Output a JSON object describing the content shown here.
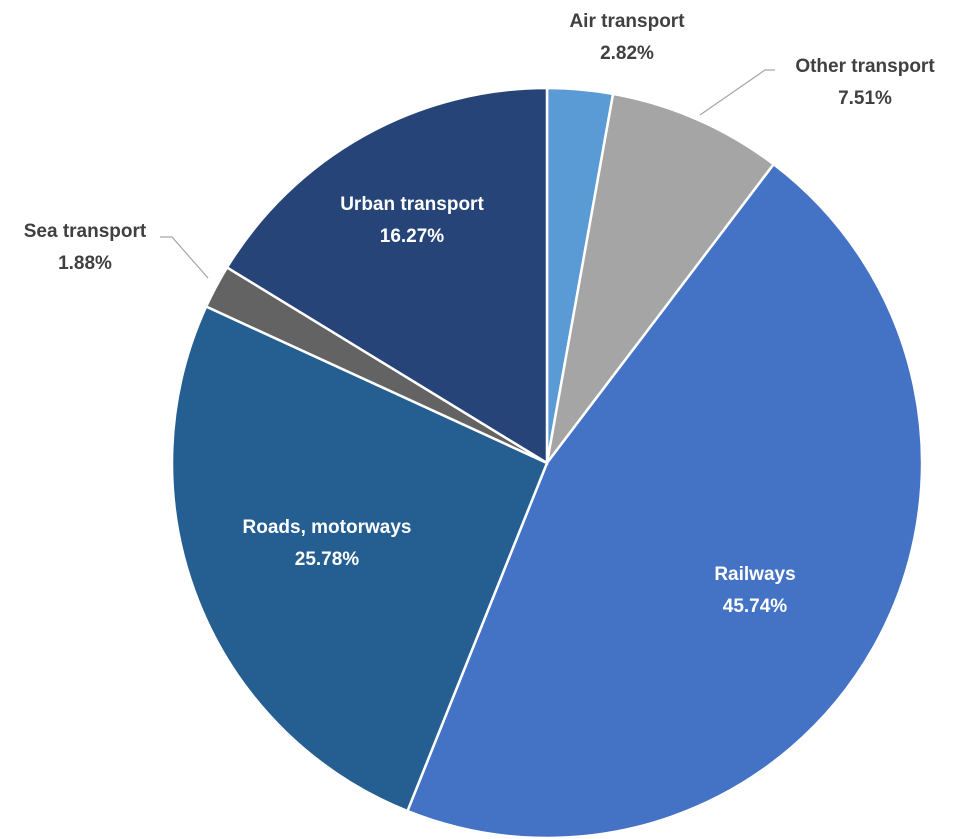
{
  "chart_data": {
    "type": "pie",
    "categories": [
      "Air transport",
      "Other transport",
      "Railways",
      "Roads, motorways",
      "Sea transport",
      "Urban transport"
    ],
    "values": [
      2.82,
      7.51,
      45.74,
      25.78,
      1.88,
      16.27
    ],
    "value_labels": [
      "2.82%",
      "7.51%",
      "45.74%",
      "25.78%",
      "1.88%",
      "16.27%"
    ],
    "colors": [
      "#5b9bd5",
      "#a5a5a5",
      "#4472c4",
      "#255e91",
      "#636363",
      "#264478"
    ]
  }
}
